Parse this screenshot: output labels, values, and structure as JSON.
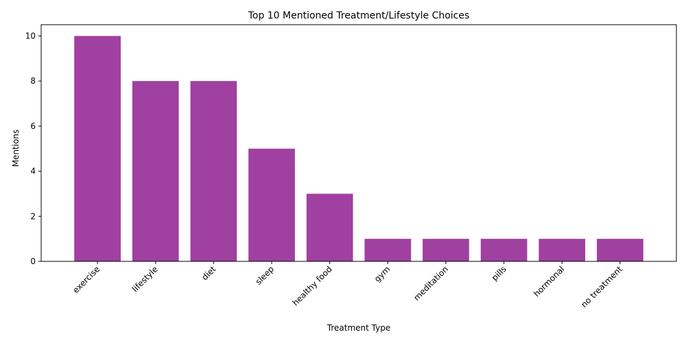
{
  "chart_data": {
    "type": "bar",
    "title": "Top 10 Mentioned Treatment/Lifestyle Choices",
    "xlabel": "Treatment Type",
    "ylabel": "Mentions",
    "categories": [
      "exercise",
      "lifestyle",
      "diet",
      "sleep",
      "healthy food",
      "gym",
      "meditation",
      "pills",
      "hormonal",
      "no treatment"
    ],
    "values": [
      10,
      8,
      8,
      5,
      3,
      1,
      1,
      1,
      1,
      1
    ],
    "ylim": [
      0,
      10.5
    ],
    "yticks": [
      0,
      2,
      4,
      6,
      8,
      10
    ],
    "bar_color": "#a040a0",
    "grid": false,
    "legend": "none"
  }
}
